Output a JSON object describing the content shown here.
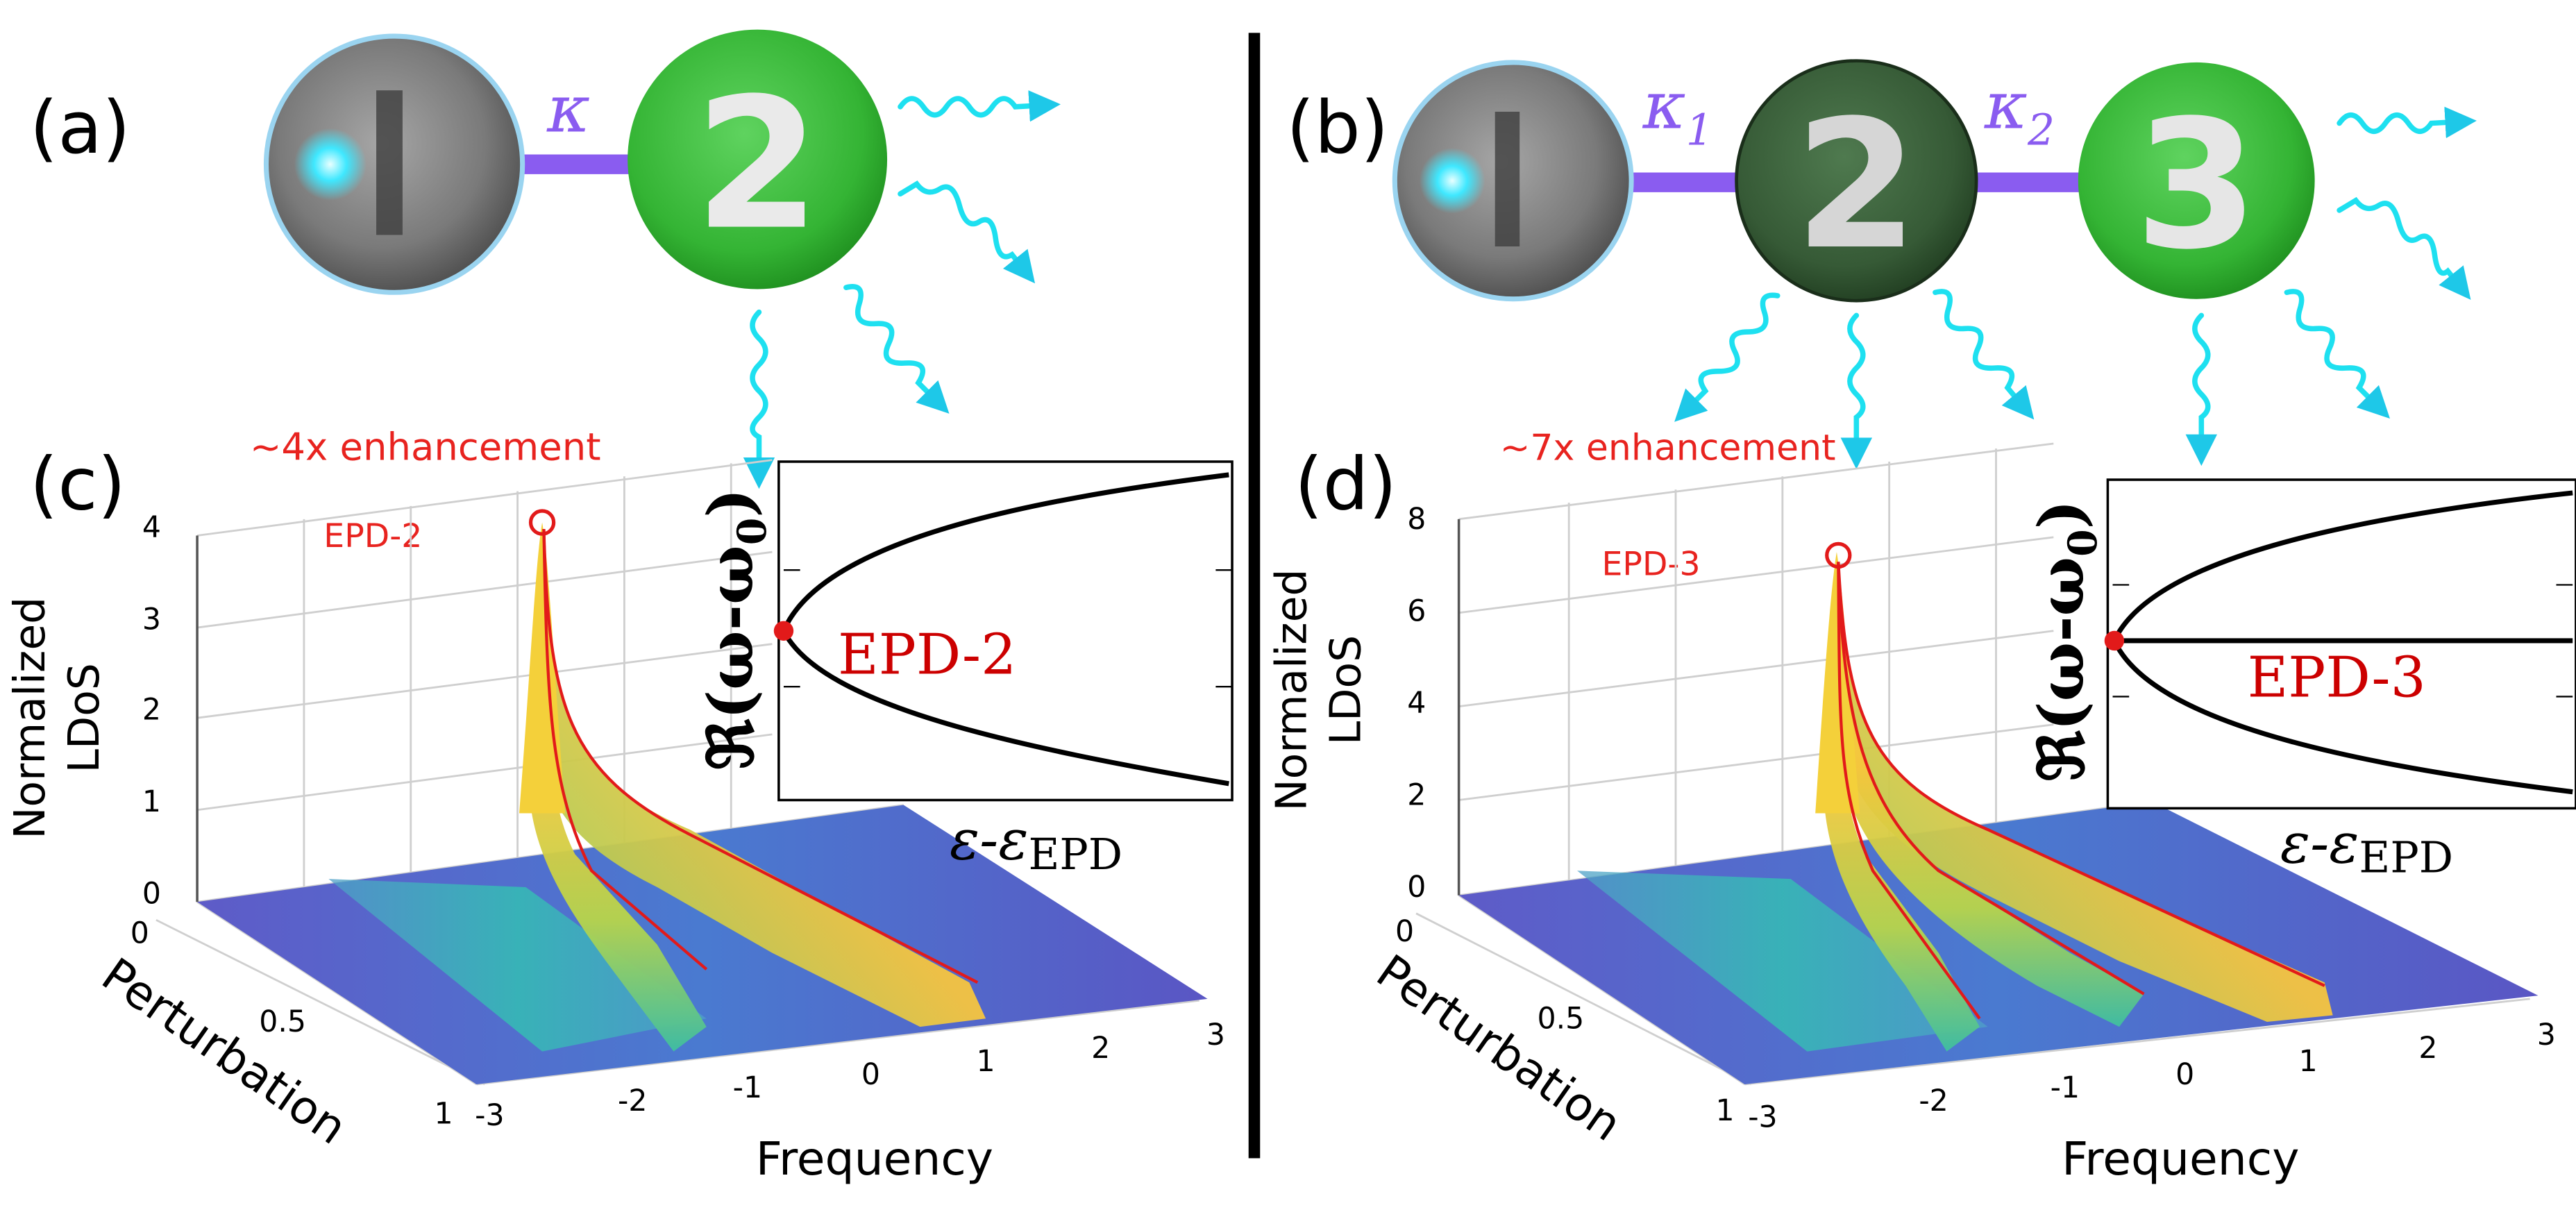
{
  "panels": {
    "a": {
      "label": "(a)",
      "coupling": "κ",
      "resonators": [
        "I",
        "2"
      ]
    },
    "b": {
      "label": "(b)",
      "couplings": [
        "κ",
        "1",
        "κ",
        "2"
      ],
      "resonators": [
        "I",
        "2",
        "3"
      ]
    },
    "c": {
      "label": "(c)",
      "annotation": "~4x enhancement",
      "peak_label": "EPD-2",
      "zlabel": [
        "Normalized",
        "LDoS"
      ],
      "xlabel": "Frequency",
      "ylabel": "Perturbation",
      "ztick_labels": [
        "0",
        "1",
        "2",
        "3",
        "4"
      ],
      "xtick_labels": [
        "-3",
        "-2",
        "-1",
        "0",
        "1",
        "2",
        "3"
      ],
      "ytick_labels": [
        "0",
        "0.5",
        "1"
      ],
      "inset": {
        "ylabel_main": "ℜ(ω-ω",
        "ylabel_sub": "0",
        "ylabel_close": ")",
        "xlabel_main": "ε-ε",
        "xlabel_sub": "EPD",
        "point_label": "EPD-2"
      }
    },
    "d": {
      "label": "(d)",
      "annotation": "~7x enhancement",
      "peak_label": "EPD-3",
      "zlabel": [
        "Normalized",
        "LDoS"
      ],
      "xlabel": "Frequency",
      "ylabel": "Perturbation",
      "ztick_labels": [
        "0",
        "2",
        "4",
        "6",
        "8"
      ],
      "xtick_labels": [
        "-3",
        "-2",
        "-1",
        "0",
        "1",
        "2",
        "3"
      ],
      "ytick_labels": [
        "0",
        "0.5",
        "1"
      ],
      "inset": {
        "ylabel_main": "ℜ(ω-ω",
        "ylabel_sub": "0",
        "ylabel_close": ")",
        "xlabel_main": "ε-ε",
        "xlabel_sub": "EPD",
        "point_label": "EPD-3"
      }
    }
  },
  "chart_data": [
    {
      "type": "area",
      "zlabel": "Normalized LDoS",
      "xlabel": "Frequency",
      "ylabel": "Perturbation",
      "xlim": [
        -3,
        3
      ],
      "ylim": [
        0,
        1
      ],
      "zlim": [
        0,
        4
      ],
      "grid": true,
      "peak": {
        "x": 0,
        "y": 0,
        "z": 4,
        "label": "EPD-2"
      },
      "branches": [
        {
          "x": [
            0,
            0.5,
            1,
            1.4
          ],
          "y": [
            0,
            0.35,
            0.7,
            1
          ]
        },
        {
          "x": [
            0,
            -0.5,
            -1,
            -1.4
          ],
          "y": [
            0,
            0.35,
            0.7,
            1
          ]
        }
      ],
      "annotation": "~4x enhancement"
    },
    {
      "type": "area",
      "zlabel": "Normalized LDoS",
      "xlabel": "Frequency",
      "ylabel": "Perturbation",
      "xlim": [
        -3,
        3
      ],
      "ylim": [
        0,
        1
      ],
      "zlim": [
        0,
        8
      ],
      "grid": true,
      "peak": {
        "x": 0,
        "y": 0,
        "z": 7.2,
        "label": "EPD-3"
      },
      "branches": [
        {
          "x": [
            0,
            0,
            0,
            0
          ],
          "y": [
            0,
            0.35,
            0.7,
            1
          ]
        },
        {
          "x": [
            0,
            0.7,
            1.4,
            1.9
          ],
          "y": [
            0,
            0.35,
            0.7,
            1
          ]
        },
        {
          "x": [
            0,
            -0.7,
            -1.4,
            -1.9
          ],
          "y": [
            0,
            0.35,
            0.7,
            1
          ]
        }
      ],
      "annotation": "~7x enhancement"
    }
  ]
}
